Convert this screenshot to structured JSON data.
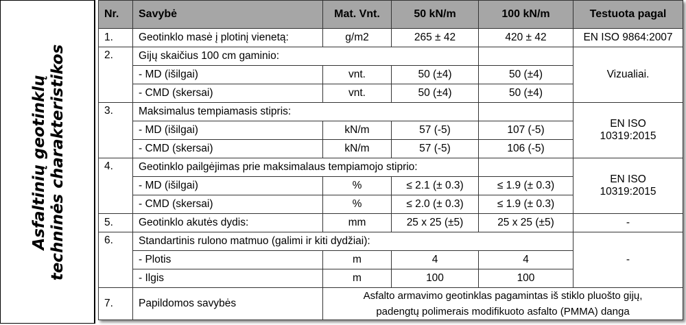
{
  "side_title": [
    "Asfaltinių geotinklų",
    "techninės charakteristikos"
  ],
  "header": {
    "nr": "Nr.",
    "property": "Savybė",
    "unit": "Mat. Vnt.",
    "col50": "50 kN/m",
    "col100": "100 kN/m",
    "tested": "Testuota pagal"
  },
  "header_bg": "#a6a6a6",
  "rows": {
    "r1": {
      "nr": "1.",
      "label": "Geotinklo masė į plotinį vienetą:",
      "unit": "g/m2",
      "v50": "265 ± 42",
      "v100": "420 ± 42",
      "tested": "EN ISO 9864:2007"
    },
    "r2": {
      "nr": "2.",
      "label": "Gijų skaičius 100 cm gaminio:",
      "tested": "Vizualiai.",
      "md": {
        "label": "- MD (išilgai)",
        "unit": "vnt.",
        "v50": "50 (±4)",
        "v100": "50 (±4)"
      },
      "cmd": {
        "label": "- CMD (skersai)",
        "unit": "vnt.",
        "v50": "50 (±4)",
        "v100": "50 (±4)"
      }
    },
    "r3": {
      "nr": "3.",
      "label": "Maksimalus tempiamasis stipris:",
      "tested_1": "EN ISO",
      "tested_2": "10319:2015",
      "md": {
        "label": "- MD (išilgai)",
        "unit": "kN/m",
        "v50": "57 (-5)",
        "v100": "107 (-5)"
      },
      "cmd": {
        "label": "- CMD (skersai)",
        "unit": "kN/m",
        "v50": "57 (-5)",
        "v100": "106 (-5)"
      }
    },
    "r4": {
      "nr": "4.",
      "label": "Geotinklo pailgėjimas prie maksimalaus tempiamojo stiprio:",
      "tested_1": "EN ISO",
      "tested_2": "10319:2015",
      "md": {
        "label": "- MD (išilgai)",
        "unit": "%",
        "v50": "≤ 2.1 (± 0.3)",
        "v100": "≤ 1.9 (± 0.3)"
      },
      "cmd": {
        "label": "- CMD (skersai)",
        "unit": "%",
        "v50": "≤ 2.0 (± 0.3)",
        "v100": "≤ 1.9 (± 0.3)"
      }
    },
    "r5": {
      "nr": "5.",
      "label": "Geotinklo akutės dydis:",
      "unit": "mm",
      "v50": "25 x 25 (±5)",
      "v100": "25 x 25 (±5)",
      "tested": "-"
    },
    "r6": {
      "nr": "6.",
      "label": "Standartinis rulono matmuo (galimi ir kiti dydžiai):",
      "tested": "-",
      "width": {
        "label": "- Plotis",
        "unit": "m",
        "v50": "4",
        "v100": "4"
      },
      "length": {
        "label": "- Ilgis",
        "unit": "m",
        "v50": "100",
        "v100": "100"
      }
    },
    "r7": {
      "nr": "7.",
      "label": "Papildomos savybės",
      "desc_1": "Asfalto armavimo geotinklas pagamintas iš stiklo pluošto gijų,",
      "desc_2": "padengtų polimerais modifikuoto asfalto (PMMA) danga"
    }
  }
}
